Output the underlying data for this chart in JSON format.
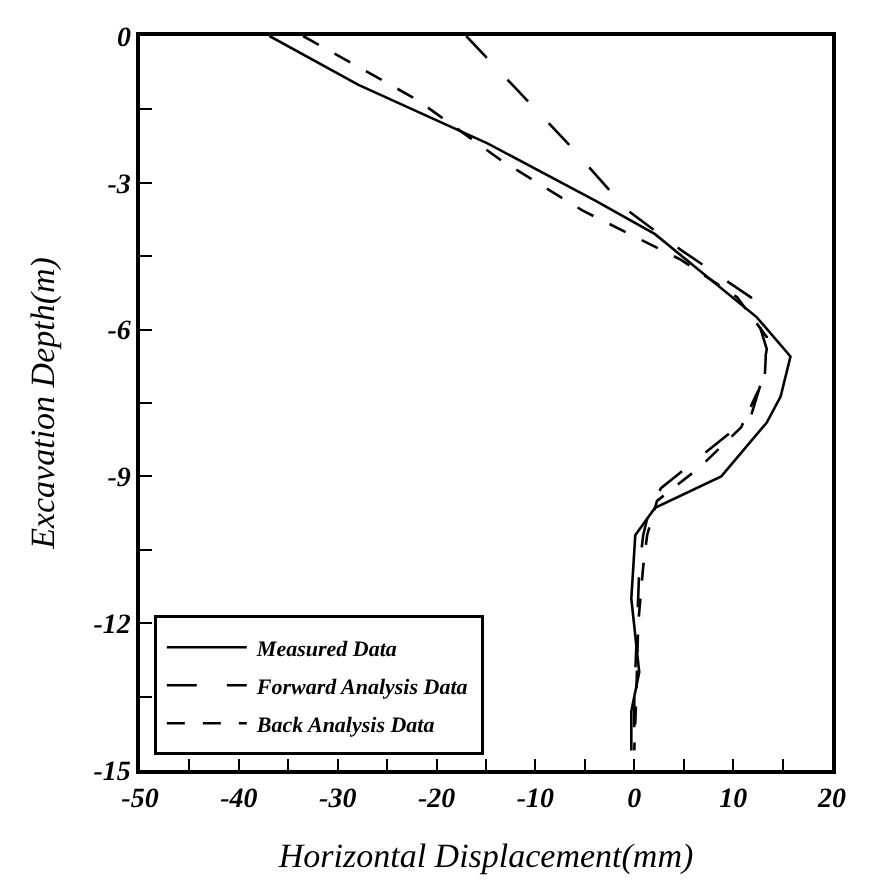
{
  "chart_data": {
    "type": "line",
    "xlabel": "Horizontal Displacement(mm)",
    "ylabel": "Excavation Depth(m)",
    "xlim": [
      -50,
      20
    ],
    "ylim": [
      -15,
      0
    ],
    "xticks": [
      -50,
      {
        "value": -45,
        "label": null
      },
      -40,
      {
        "value": -35,
        "label": null
      },
      -30,
      {
        "value": -25,
        "label": null
      },
      -20,
      {
        "value": -15,
        "label": null
      },
      -10,
      {
        "value": -5,
        "label": null
      },
      0,
      {
        "value": 5,
        "label": null
      },
      10,
      {
        "value": 15,
        "label": null
      },
      20
    ],
    "yticks": [
      -15,
      {
        "value": -13.5,
        "label": null
      },
      -12,
      {
        "value": -10.5,
        "label": null
      },
      -9,
      {
        "value": -7.5,
        "label": null
      },
      -6,
      {
        "value": -4.5,
        "label": null
      },
      -3,
      {
        "value": -1.5,
        "label": null
      },
      0
    ],
    "legend": "bottom left",
    "marker": "none",
    "series": [
      {
        "name": "Measured Data",
        "color": "#000000",
        "line_style": "solid",
        "x": [
          -36.9,
          -27.9,
          -14.8,
          -3.9,
          2.1,
          12.4,
          15.8,
          14.8,
          13.4,
          8.8,
          2.1,
          0.1,
          -0.3,
          0.5,
          -0.3,
          -0.3
        ],
        "values": [
          0,
          -1.0,
          -2.2,
          -3.37,
          -4.05,
          -5.75,
          -6.55,
          -7.37,
          -7.9,
          -9.0,
          -9.64,
          -10.2,
          -11.5,
          -13.0,
          -13.8,
          -14.6
        ]
      },
      {
        "name": "Forward Analysis Data",
        "color": "#000000",
        "line_style": "dashdot",
        "x": [
          -17.0,
          -6.7,
          -0.7,
          4.7,
          11.8,
          13.4,
          12.8,
          11.8,
          2.7,
          1.5,
          0.9,
          0.5,
          0.3,
          0.0,
          0.0
        ],
        "values": [
          0,
          -2.2,
          -3.56,
          -4.37,
          -5.34,
          -6.4,
          -7.1,
          -7.77,
          -9.24,
          -9.7,
          -10.2,
          -10.9,
          -12.0,
          -13.5,
          -14.6
        ]
      },
      {
        "name": "Back Analysis Data",
        "color": "#000000",
        "line_style": "dashed",
        "x": [
          -33.5,
          -22.0,
          -13.4,
          -5.3,
          4.7,
          10.4,
          13.4,
          13.2,
          10.8,
          6.7,
          2.3,
          1.3,
          0.9,
          0.4,
          0.2,
          0.0
        ],
        "values": [
          0,
          -1.3,
          -2.55,
          -3.56,
          -4.57,
          -5.34,
          -6.15,
          -6.96,
          -8.0,
          -8.8,
          -9.5,
          -10.2,
          -10.85,
          -12.0,
          -13.5,
          -14.6
        ]
      }
    ]
  }
}
